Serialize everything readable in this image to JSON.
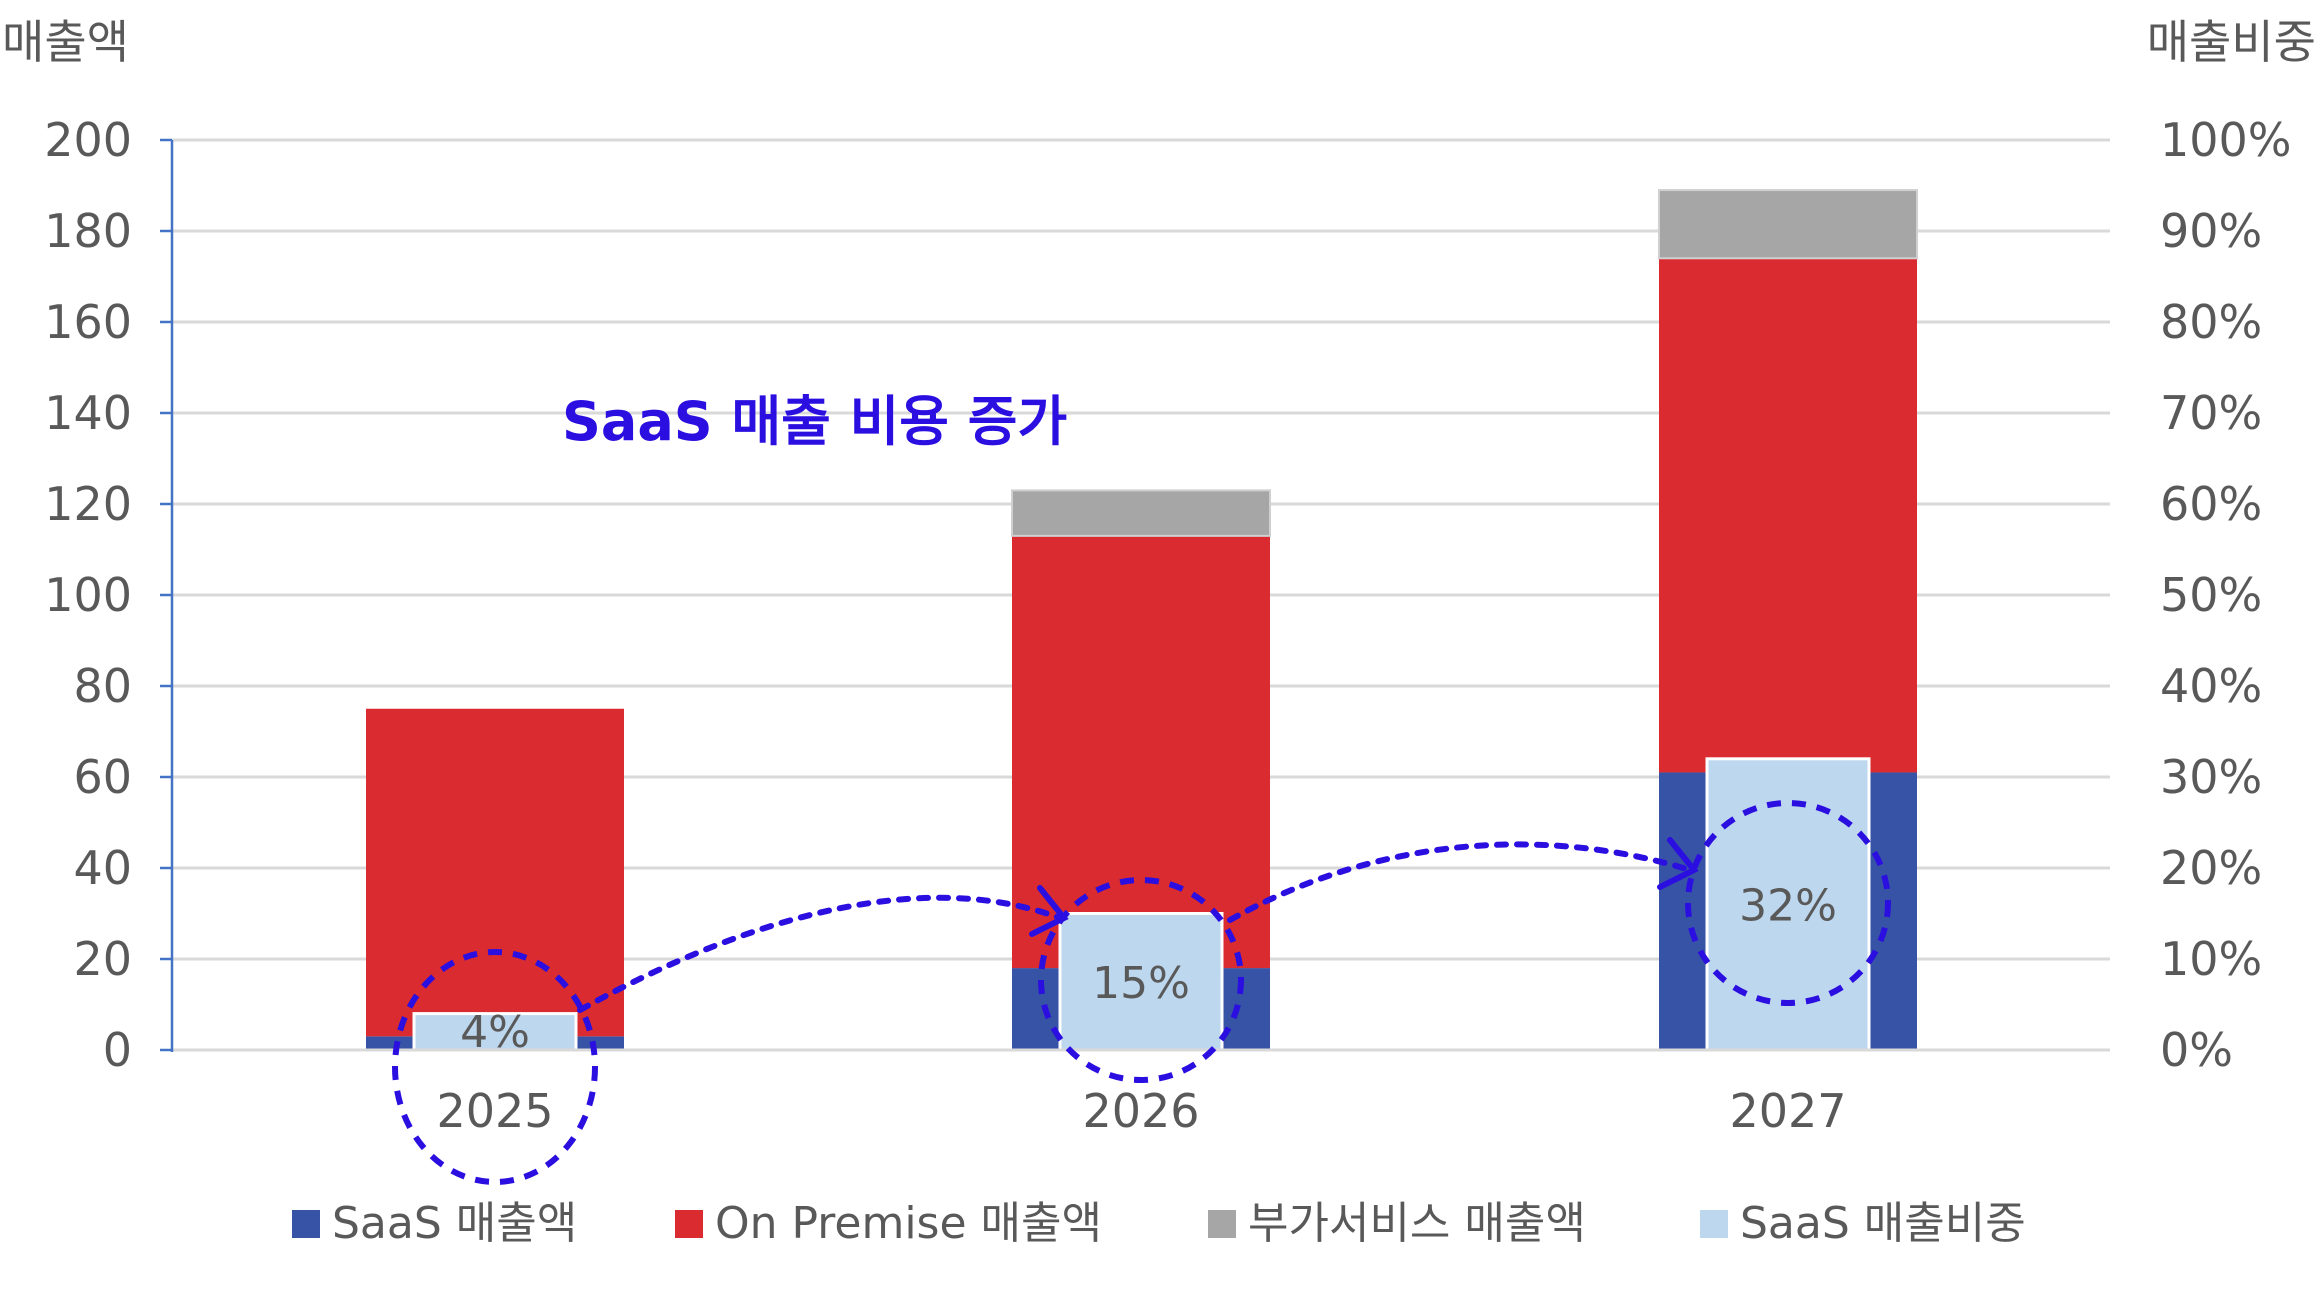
{
  "chart_data": {
    "type": "bar",
    "stacked": true,
    "categories": [
      "2025",
      "2026",
      "2027"
    ],
    "series": [
      {
        "name": "SaaS 매출액",
        "axis": "left",
        "values": [
          3,
          18,
          61
        ],
        "color": "#3753a5"
      },
      {
        "name": "On Premise 매출액",
        "axis": "left",
        "values": [
          72,
          95,
          113
        ],
        "color": "#d92b30"
      },
      {
        "name": "부가서비스 매출액",
        "axis": "left",
        "values": [
          0,
          10,
          15
        ],
        "color": "#a6a6a6"
      },
      {
        "name": "SaaS 매출비중",
        "axis": "right",
        "values": [
          4,
          15,
          32
        ],
        "color": "#bdd7ee",
        "data_labels": [
          "4%",
          "15%",
          "32%"
        ]
      }
    ],
    "y_left": {
      "label": "매출액",
      "ylim": [
        0,
        200
      ],
      "ticks": [
        "0",
        "20",
        "40",
        "60",
        "80",
        "100",
        "120",
        "140",
        "160",
        "180",
        "200"
      ]
    },
    "y_right": {
      "label": "매출비중",
      "ylim": [
        0,
        100
      ],
      "ticks": [
        "0%",
        "10%",
        "20%",
        "30%",
        "40%",
        "50%",
        "60%",
        "70%",
        "80%",
        "90%",
        "100%"
      ]
    },
    "grid": true,
    "legend_position": "bottom",
    "annotation": {
      "text": "SaaS 매출 비용 증가",
      "color": "#2b0fe0"
    }
  }
}
